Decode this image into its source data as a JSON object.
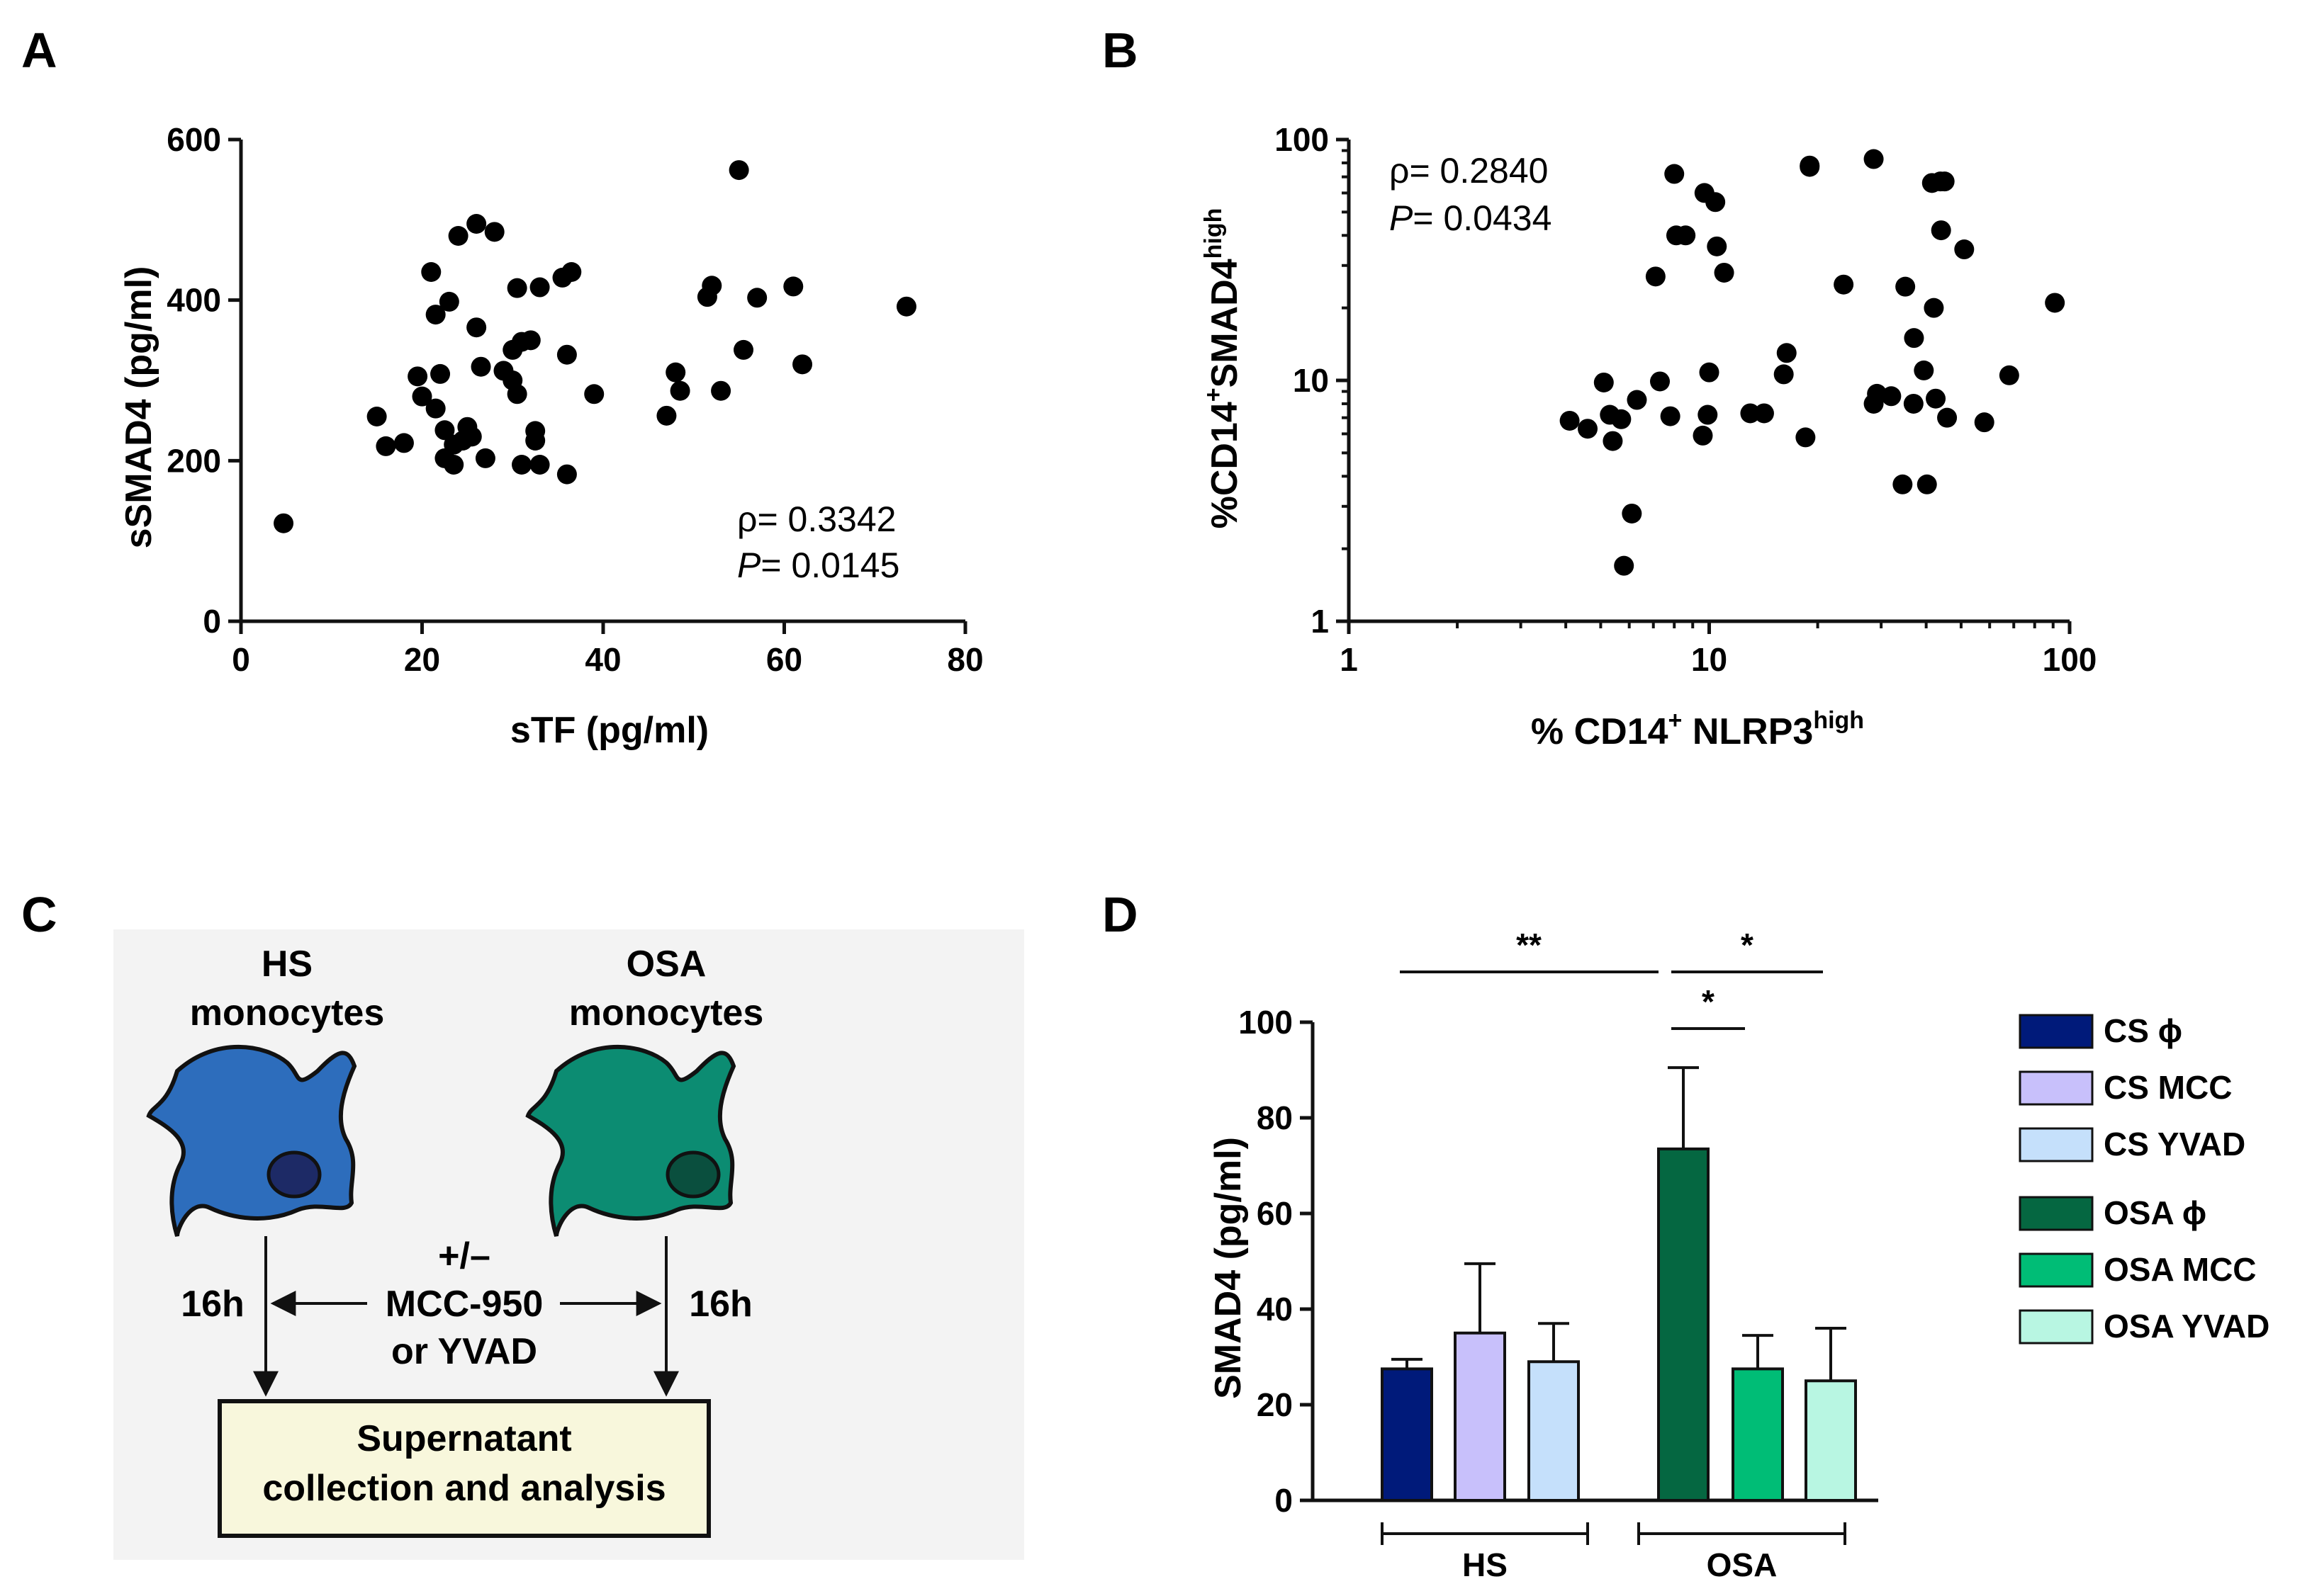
{
  "panels": {
    "A": "A",
    "B": "B",
    "C": "C",
    "D": "D"
  },
  "chart_data": [
    {
      "panel": "A",
      "type": "scatter",
      "xlabel": "sTF (pg/ml)",
      "ylabel": "sSMAD4 (pg/ml)",
      "xlim": [
        0,
        80
      ],
      "ylim": [
        0,
        600
      ],
      "xticks": [
        0,
        20,
        40,
        60,
        80
      ],
      "yticks": [
        0,
        200,
        400,
        600
      ],
      "stats": {
        "rho_sym": "ρ",
        "rho": "= 0.3342",
        "p_sym": "P",
        "p": "= 0.0145"
      },
      "points": [
        [
          4.7,
          122
        ],
        [
          15,
          255
        ],
        [
          16,
          218
        ],
        [
          18,
          222
        ],
        [
          19.5,
          305
        ],
        [
          20,
          280
        ],
        [
          21,
          435
        ],
        [
          21.5,
          382
        ],
        [
          21.5,
          265
        ],
        [
          22,
          308
        ],
        [
          22.5,
          238
        ],
        [
          22.5,
          203
        ],
        [
          23,
          398
        ],
        [
          23.5,
          220
        ],
        [
          23.5,
          195
        ],
        [
          24,
          480
        ],
        [
          24.5,
          225
        ],
        [
          25,
          242
        ],
        [
          25.5,
          230
        ],
        [
          26,
          366
        ],
        [
          26,
          495
        ],
        [
          26.5,
          317
        ],
        [
          27,
          203
        ],
        [
          28,
          485
        ],
        [
          29,
          312
        ],
        [
          30,
          338
        ],
        [
          30,
          300
        ],
        [
          30.5,
          415
        ],
        [
          30.5,
          283
        ],
        [
          31,
          195
        ],
        [
          31,
          348
        ],
        [
          32,
          350
        ],
        [
          32.5,
          237
        ],
        [
          32.5,
          225
        ],
        [
          33,
          416
        ],
        [
          33,
          195
        ],
        [
          35.5,
          428
        ],
        [
          36,
          183
        ],
        [
          36,
          332
        ],
        [
          36.5,
          435
        ],
        [
          39,
          283
        ],
        [
          47,
          256
        ],
        [
          48,
          310
        ],
        [
          48.5,
          287
        ],
        [
          51.5,
          404
        ],
        [
          52,
          418
        ],
        [
          53,
          287
        ],
        [
          55,
          562
        ],
        [
          55.5,
          338
        ],
        [
          57,
          403
        ],
        [
          61,
          417
        ],
        [
          62,
          320
        ],
        [
          73.5,
          392
        ]
      ]
    },
    {
      "panel": "B",
      "type": "scatter",
      "scale": "log-log",
      "xlabel": "% CD14",
      "xlabel_sup1": "+",
      "xlabel_mid": " NLRP3",
      "xlabel_sup2": "high",
      "ylabel": "%CD14",
      "ylabel_sup1": "+",
      "ylabel_mid": "SMAD4",
      "ylabel_sup2": "high",
      "xlim": [
        1,
        100
      ],
      "ylim": [
        1,
        100
      ],
      "xticks": [
        1,
        10,
        100
      ],
      "yticks": [
        1,
        10,
        100
      ],
      "stats": {
        "rho_sym": "ρ",
        "rho": "= 0.2840",
        "p_sym": "P",
        "p": "= 0.0434"
      },
      "points": [
        [
          4.1,
          6.8
        ],
        [
          4.6,
          6.3
        ],
        [
          5.1,
          9.8
        ],
        [
          5.3,
          7.2
        ],
        [
          5.4,
          5.6
        ],
        [
          5.7,
          6.9
        ],
        [
          5.8,
          1.7
        ],
        [
          6.1,
          2.8
        ],
        [
          6.3,
          8.3
        ],
        [
          7.1,
          27
        ],
        [
          7.3,
          9.9
        ],
        [
          7.8,
          7.1
        ],
        [
          8,
          72
        ],
        [
          8.1,
          40
        ],
        [
          8.6,
          40
        ],
        [
          9.6,
          5.9
        ],
        [
          9.7,
          60
        ],
        [
          9.9,
          7.2
        ],
        [
          10,
          10.8
        ],
        [
          10.4,
          55
        ],
        [
          10.5,
          36
        ],
        [
          11,
          28
        ],
        [
          13,
          7.3
        ],
        [
          14.2,
          7.3
        ],
        [
          16.1,
          10.6
        ],
        [
          16.4,
          13
        ],
        [
          18.5,
          5.8
        ],
        [
          19,
          78
        ],
        [
          19,
          77
        ],
        [
          23.6,
          25
        ],
        [
          28.6,
          83
        ],
        [
          28.6,
          8
        ],
        [
          29.2,
          8.8
        ],
        [
          32,
          8.6
        ],
        [
          34.4,
          3.7
        ],
        [
          35,
          24.5
        ],
        [
          36.9,
          8
        ],
        [
          37,
          15
        ],
        [
          39.4,
          11
        ],
        [
          40.2,
          3.7
        ],
        [
          41.5,
          66
        ],
        [
          42,
          20
        ],
        [
          42.5,
          8.4
        ],
        [
          43.8,
          67
        ],
        [
          44,
          42
        ],
        [
          45,
          67
        ],
        [
          45.7,
          7
        ],
        [
          51,
          35
        ],
        [
          58,
          6.7
        ],
        [
          68,
          10.5
        ],
        [
          91,
          21
        ]
      ]
    },
    {
      "panel": "D",
      "type": "bar",
      "ylabel": "SMAD4 (pg/ml)",
      "ylim": [
        0,
        100
      ],
      "yticks": [
        0,
        20,
        40,
        60,
        80,
        100
      ],
      "categories": [
        "CS ϕ",
        "CS MCC",
        "CS YVAD",
        "OSA ϕ",
        "OSA MCC",
        "OSA YVAD"
      ],
      "values": [
        27.5,
        35,
        29,
        73.5,
        27.5,
        25
      ],
      "errors": [
        2,
        14.5,
        8,
        17,
        7,
        11
      ],
      "colors": [
        "#001a7a",
        "#c8c0fb",
        "#c5e0fb",
        "#056741",
        "#00bd76",
        "#b8f6e2"
      ],
      "groups": [
        "HS",
        "OSA"
      ],
      "significance": [
        "**",
        "*",
        "*"
      ]
    }
  ],
  "diagram": {
    "hs_label_line1": "HS",
    "hs_label_line2": "monocytes",
    "osa_label_line1": "OSA",
    "osa_label_line2": "monocytes",
    "time_left": "16h",
    "time_right": "16h",
    "treatment_line1": "+/–",
    "treatment_line2": "MCC-950",
    "treatment_line3": "or YVAD",
    "box_line1": "Supernatant",
    "box_line2": "collection and analysis",
    "colors": {
      "hs_cell": "#2d6dbc",
      "hs_nucleus": "#1d2a66",
      "osa_cell": "#0c8c72",
      "osa_nucleus": "#0a4f3e",
      "box": "#f8f7dc",
      "panel_bg": "#f3f3f3"
    }
  }
}
